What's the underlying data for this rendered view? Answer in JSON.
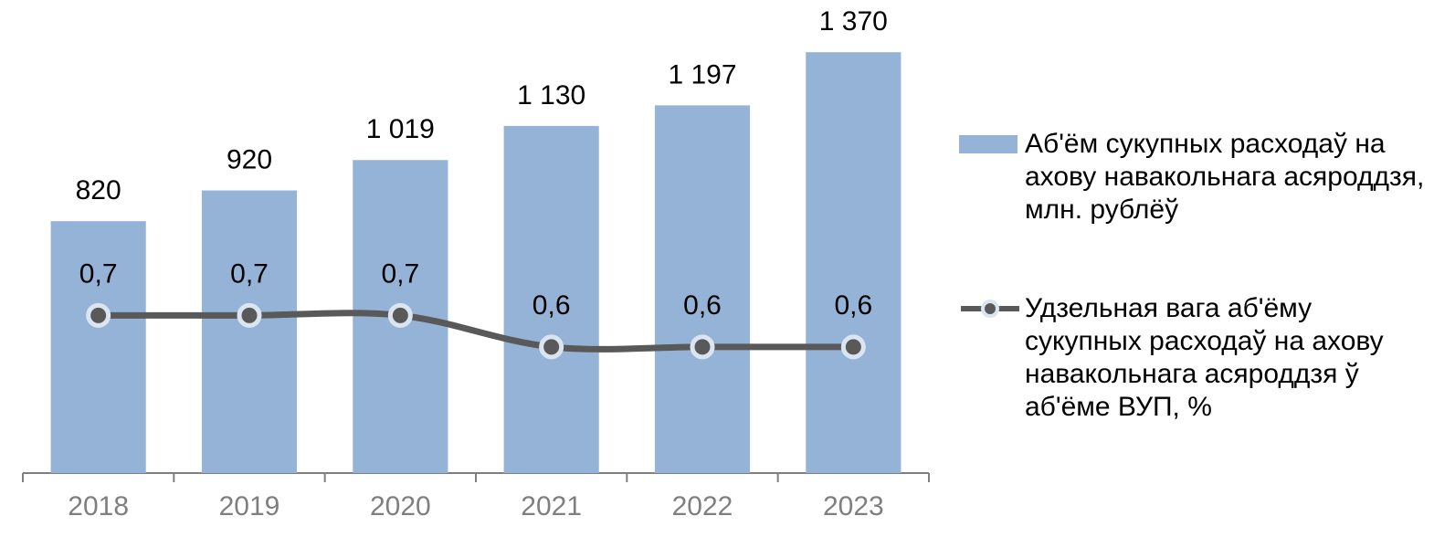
{
  "chart_data": {
    "type": "bar-line",
    "categories": [
      "2018",
      "2019",
      "2020",
      "2021",
      "2022",
      "2023"
    ],
    "series": [
      {
        "name": "Аб'ём сукупных расходаў на ахову навакольнага асяроддзя, млн. рублёў",
        "type": "bar",
        "color": "#95b3d7",
        "values": [
          820,
          920,
          1019,
          1130,
          1197,
          1370
        ],
        "value_labels": [
          "820",
          "920",
          "1 019",
          "1 130",
          "1 197",
          "1 370"
        ]
      },
      {
        "name": "Удзельная вага аб'ёму сукупных расходаў на ахову навакольнага асяроддзя ў аб'ёме ВУП, %",
        "type": "line",
        "axis": "y2",
        "color": "#595959",
        "values": [
          0.7,
          0.7,
          0.7,
          0.6,
          0.6,
          0.6
        ],
        "value_labels": [
          "0,7",
          "0,7",
          "0,7",
          "0,6",
          "0,6",
          "0,6"
        ]
      }
    ],
    "ylim": [
      0,
      1540
    ],
    "y2lim": [
      0.2,
      1.7
    ],
    "legend": "right"
  }
}
